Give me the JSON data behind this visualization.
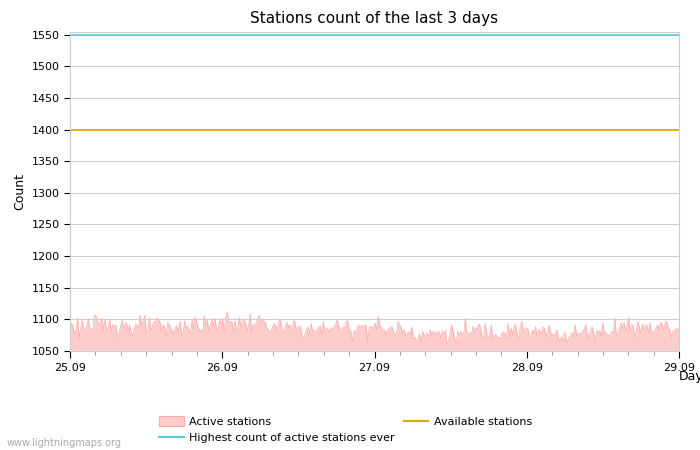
{
  "title": "Stations count of the last 3 days",
  "xlabel": "Day",
  "ylabel": "Count",
  "ylim": [
    1050,
    1555
  ],
  "xlim": [
    0,
    96
  ],
  "yticks": [
    1050,
    1100,
    1150,
    1200,
    1250,
    1300,
    1350,
    1400,
    1450,
    1500,
    1550
  ],
  "xtick_positions": [
    0,
    24,
    48,
    72,
    96
  ],
  "xtick_labels": [
    "25.09",
    "26.09",
    "27.09",
    "28.09",
    "29.09"
  ],
  "highest_count": 1550,
  "available_stations": 1400,
  "active_stations_base": 1085,
  "active_fill_color": "#ffcccc",
  "active_line_color": "#ffaaaa",
  "highest_line_color": "#55ccdd",
  "available_line_color": "#ddaa00",
  "background_color": "#ffffff",
  "grid_color": "#cccccc",
  "title_fontsize": 11,
  "axis_label_fontsize": 9,
  "tick_fontsize": 8,
  "watermark": "www.lightningmaps.org",
  "legend_labels": [
    "Active stations",
    "Highest count of active stations ever",
    "Available stations"
  ]
}
